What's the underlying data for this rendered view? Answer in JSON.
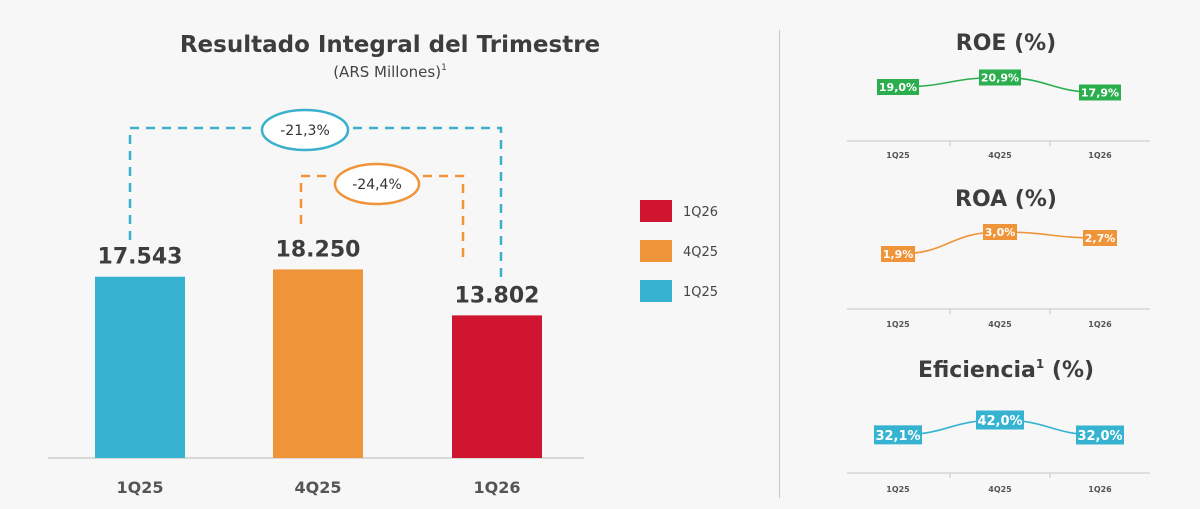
{
  "chart_data": [
    {
      "type": "bar",
      "title": "Resultado Integral del Trimestre",
      "subtitle": "(ARS Millones)",
      "subtitle_sup": "1",
      "categories": [
        "1Q25",
        "4Q25",
        "1Q26"
      ],
      "values": [
        17543,
        18250,
        13802
      ],
      "value_labels": [
        "17.543",
        "18.250",
        "13.802"
      ],
      "colors": [
        "#35b3d1",
        "#f0943a",
        "#cf1530"
      ],
      "ylim": [
        0,
        30000
      ],
      "legend": {
        "placement": "right",
        "items": [
          {
            "label": "1Q26",
            "color": "#cf1530"
          },
          {
            "label": "4Q25",
            "color": "#f0943a"
          },
          {
            "label": "1Q25",
            "color": "#35b3d1"
          }
        ]
      },
      "annotations": [
        {
          "from": "1Q25",
          "to": "1Q26",
          "label": "-21,3%",
          "color": "#3ab0cc"
        },
        {
          "from": "4Q25",
          "to": "1Q26",
          "label": "-24,4%",
          "color": "#f0943a"
        }
      ]
    },
    {
      "type": "line",
      "title": "ROE (%)",
      "x": [
        "1Q25",
        "4Q25",
        "1Q26"
      ],
      "y": [
        19.0,
        20.9,
        17.9
      ],
      "labels": [
        "19,0%",
        "20,9%",
        "17,9%"
      ],
      "ylim": [
        14,
        24
      ],
      "color": "#2bae4e"
    },
    {
      "type": "line",
      "title": "ROA (%)",
      "x": [
        "1Q25",
        "4Q25",
        "1Q26"
      ],
      "y": [
        1.9,
        3.0,
        2.7
      ],
      "labels": [
        "1,9%",
        "3,0%",
        "2,7%"
      ],
      "ylim": [
        1.0,
        3.5
      ],
      "color": "#f0943a"
    },
    {
      "type": "line",
      "title": "Eficiencia",
      "title_sup": "1",
      "title_suffix": "(%)",
      "x": [
        "1Q25",
        "4Q25",
        "1Q26"
      ],
      "y": [
        32.1,
        42.0,
        32.0
      ],
      "labels": [
        "32,1%",
        "42,0%",
        "32,0%"
      ],
      "ylim": [
        22,
        50
      ],
      "color": "#35b3d1"
    }
  ]
}
